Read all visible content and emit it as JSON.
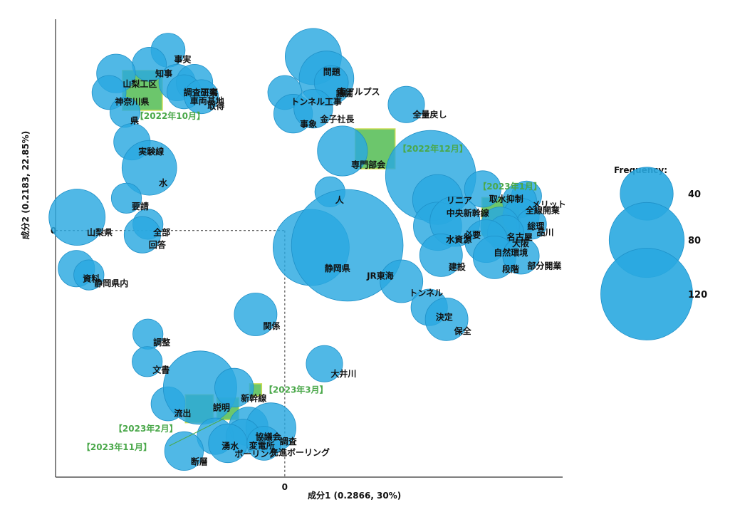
{
  "chart_data": {
    "type": "scatter",
    "xlabel": "成分1 (0.2866, 30%)",
    "ylabel": "成分2 (0.2183, 22.85%)",
    "xlim": [
      -3.3,
      4.0
    ],
    "ylim": [
      -3.5,
      3.0
    ],
    "zero_label": "0",
    "legend": {
      "title": "Frequency:",
      "placement": "right",
      "entries": [
        {
          "label": "40",
          "value": 40
        },
        {
          "label": "80",
          "value": 80
        },
        {
          "label": "120",
          "value": 120
        }
      ]
    },
    "colors": {
      "word_fill": "#29a8e0",
      "word_stroke": "#1e90c8",
      "period_fill": "#5cc05c",
      "period_stroke": "#c8dc50",
      "period_text": "#4aa84a",
      "axis": "#333333"
    },
    "words": [
      {
        "label": "事実",
        "x": -1.68,
        "y": 2.56,
        "freq": 14
      },
      {
        "label": "知事",
        "x": -1.95,
        "y": 2.36,
        "freq": 14
      },
      {
        "label": "山梨工区",
        "x": -2.43,
        "y": 2.23,
        "freq": 18
      },
      {
        "label": "調査研究",
        "x": -1.55,
        "y": 2.1,
        "freq": 16
      },
      {
        "label": "工事",
        "x": -1.3,
        "y": 2.1,
        "freq": 16
      },
      {
        "label": "神奈川県",
        "x": -2.53,
        "y": 1.96,
        "freq": 14
      },
      {
        "label": "車両基地",
        "x": -1.45,
        "y": 1.97,
        "freq": 14
      },
      {
        "label": "取得",
        "x": -1.2,
        "y": 1.9,
        "freq": 14
      },
      {
        "label": "県",
        "x": -2.3,
        "y": 1.68,
        "freq": 11
      },
      {
        "label": "実験線",
        "x": -2.2,
        "y": 1.26,
        "freq": 16
      },
      {
        "label": "水",
        "x": -1.95,
        "y": 0.89,
        "freq": 36
      },
      {
        "label": "要請",
        "x": -2.28,
        "y": 0.46,
        "freq": 11
      },
      {
        "label": "山梨県",
        "x": -2.99,
        "y": 0.19,
        "freq": 38
      },
      {
        "label": "全部",
        "x": -1.97,
        "y": 0.09,
        "freq": 11
      },
      {
        "label": "回答",
        "x": -2.05,
        "y": -0.06,
        "freq": 16
      },
      {
        "label": "資料",
        "x": -3.0,
        "y": -0.54,
        "freq": 16
      },
      {
        "label": "静岡県内",
        "x": -2.82,
        "y": -0.63,
        "freq": 11
      },
      {
        "label": "関係",
        "x": -0.42,
        "y": -1.19,
        "freq": 22
      },
      {
        "label": "調整",
        "x": -1.97,
        "y": -1.47,
        "freq": 11
      },
      {
        "label": "文書",
        "x": -1.98,
        "y": -1.86,
        "freq": 11
      },
      {
        "label": "流出",
        "x": -1.68,
        "y": -2.46,
        "freq": 14
      },
      {
        "label": "説明",
        "x": -1.22,
        "y": -2.23,
        "freq": 65
      },
      {
        "label": "新幹線",
        "x": -0.73,
        "y": -2.23,
        "freq": 18
      },
      {
        "label": "協議会",
        "x": -0.52,
        "y": -2.78,
        "freq": 18
      },
      {
        "label": "調査",
        "x": -0.2,
        "y": -2.8,
        "freq": 30
      },
      {
        "label": "湧水",
        "x": -1.0,
        "y": -2.92,
        "freq": 16
      },
      {
        "label": "変電所",
        "x": -0.6,
        "y": -2.92,
        "freq": 14
      },
      {
        "label": "ボーリング",
        "x": -0.82,
        "y": -3.02,
        "freq": 18
      },
      {
        "label": "断層",
        "x": -1.45,
        "y": -3.13,
        "freq": 18
      },
      {
        "label": "先進ボーリング",
        "x": -0.3,
        "y": -3.02,
        "freq": 14
      },
      {
        "label": "大井川",
        "x": 0.57,
        "y": -1.89,
        "freq": 16
      },
      {
        "label": "問題",
        "x": 0.41,
        "y": 2.47,
        "freq": 38
      },
      {
        "label": "議論",
        "x": 0.6,
        "y": 2.16,
        "freq": 36
      },
      {
        "label": "南アルプス",
        "x": 0.67,
        "y": 2.1,
        "freq": 14
      },
      {
        "label": "トンネル工事",
        "x": 0.0,
        "y": 1.96,
        "freq": 14
      },
      {
        "label": "全量戻し",
        "x": 1.75,
        "y": 1.79,
        "freq": 16
      },
      {
        "label": "事象",
        "x": 0.12,
        "y": 1.66,
        "freq": 18
      },
      {
        "label": "金子社長",
        "x": 0.41,
        "y": 1.73,
        "freq": 18
      },
      {
        "label": "専門部会",
        "x": 0.83,
        "y": 1.13,
        "freq": 30
      },
      {
        "label": "リニア",
        "x": 2.1,
        "y": 0.78,
        "freq": 98
      },
      {
        "label": "人",
        "x": 0.65,
        "y": 0.55,
        "freq": 11
      },
      {
        "label": "中央新幹線",
        "x": 2.2,
        "y": 0.44,
        "freq": 30
      },
      {
        "label": "取水抑制",
        "x": 2.85,
        "y": 0.59,
        "freq": 16
      },
      {
        "label": "メリット",
        "x": 3.48,
        "y": 0.49,
        "freq": 11
      },
      {
        "label": "全線開業",
        "x": 3.38,
        "y": 0.42,
        "freq": 14
      },
      {
        "label": "総理",
        "x": 3.4,
        "y": 0.2,
        "freq": 16
      },
      {
        "label": "品川",
        "x": 3.55,
        "y": 0.09,
        "freq": 11
      },
      {
        "label": "水資源",
        "x": 2.2,
        "y": 0.06,
        "freq": 28
      },
      {
        "label": "必要",
        "x": 2.45,
        "y": 0.13,
        "freq": 30
      },
      {
        "label": "名古屋",
        "x": 3.1,
        "y": 0.06,
        "freq": 18
      },
      {
        "label": "大阪",
        "x": 3.18,
        "y": -0.04,
        "freq": 16
      },
      {
        "label": "自然環境",
        "x": 2.9,
        "y": -0.15,
        "freq": 22
      },
      {
        "label": "建設",
        "x": 2.25,
        "y": -0.35,
        "freq": 22
      },
      {
        "label": "段階",
        "x": 3.02,
        "y": -0.38,
        "freq": 22
      },
      {
        "label": "部分開業",
        "x": 3.4,
        "y": -0.36,
        "freq": 16
      },
      {
        "label": "静岡県",
        "x": 0.38,
        "y": -0.24,
        "freq": 70
      },
      {
        "label": "JR東海",
        "x": 0.9,
        "y": -0.21,
        "freq": 150
      },
      {
        "label": "トンネル",
        "x": 1.68,
        "y": -0.72,
        "freq": 22
      },
      {
        "label": "決定",
        "x": 2.08,
        "y": -1.09,
        "freq": 16
      },
      {
        "label": "保全",
        "x": 2.33,
        "y": -1.26,
        "freq": 22
      }
    ],
    "periods": [
      {
        "label": "【2022年10月】",
        "x": -2.05,
        "y": 1.99,
        "size": 1.0
      },
      {
        "label": "【2022年12月】",
        "x": 1.3,
        "y": 1.16,
        "size": 1.0
      },
      {
        "label": "【2023年1月】",
        "x": 3.11,
        "y": 0.2,
        "size": 0.95
      },
      {
        "label": "【2023年2月】",
        "x": -1.23,
        "y": -2.53,
        "size": 0.7
      },
      {
        "label": "【2023年11月】",
        "x": -0.82,
        "y": -2.53,
        "size": 0.55
      },
      {
        "label": "【2023年3月】",
        "x": -0.42,
        "y": -2.26,
        "size": 0.3
      }
    ]
  }
}
